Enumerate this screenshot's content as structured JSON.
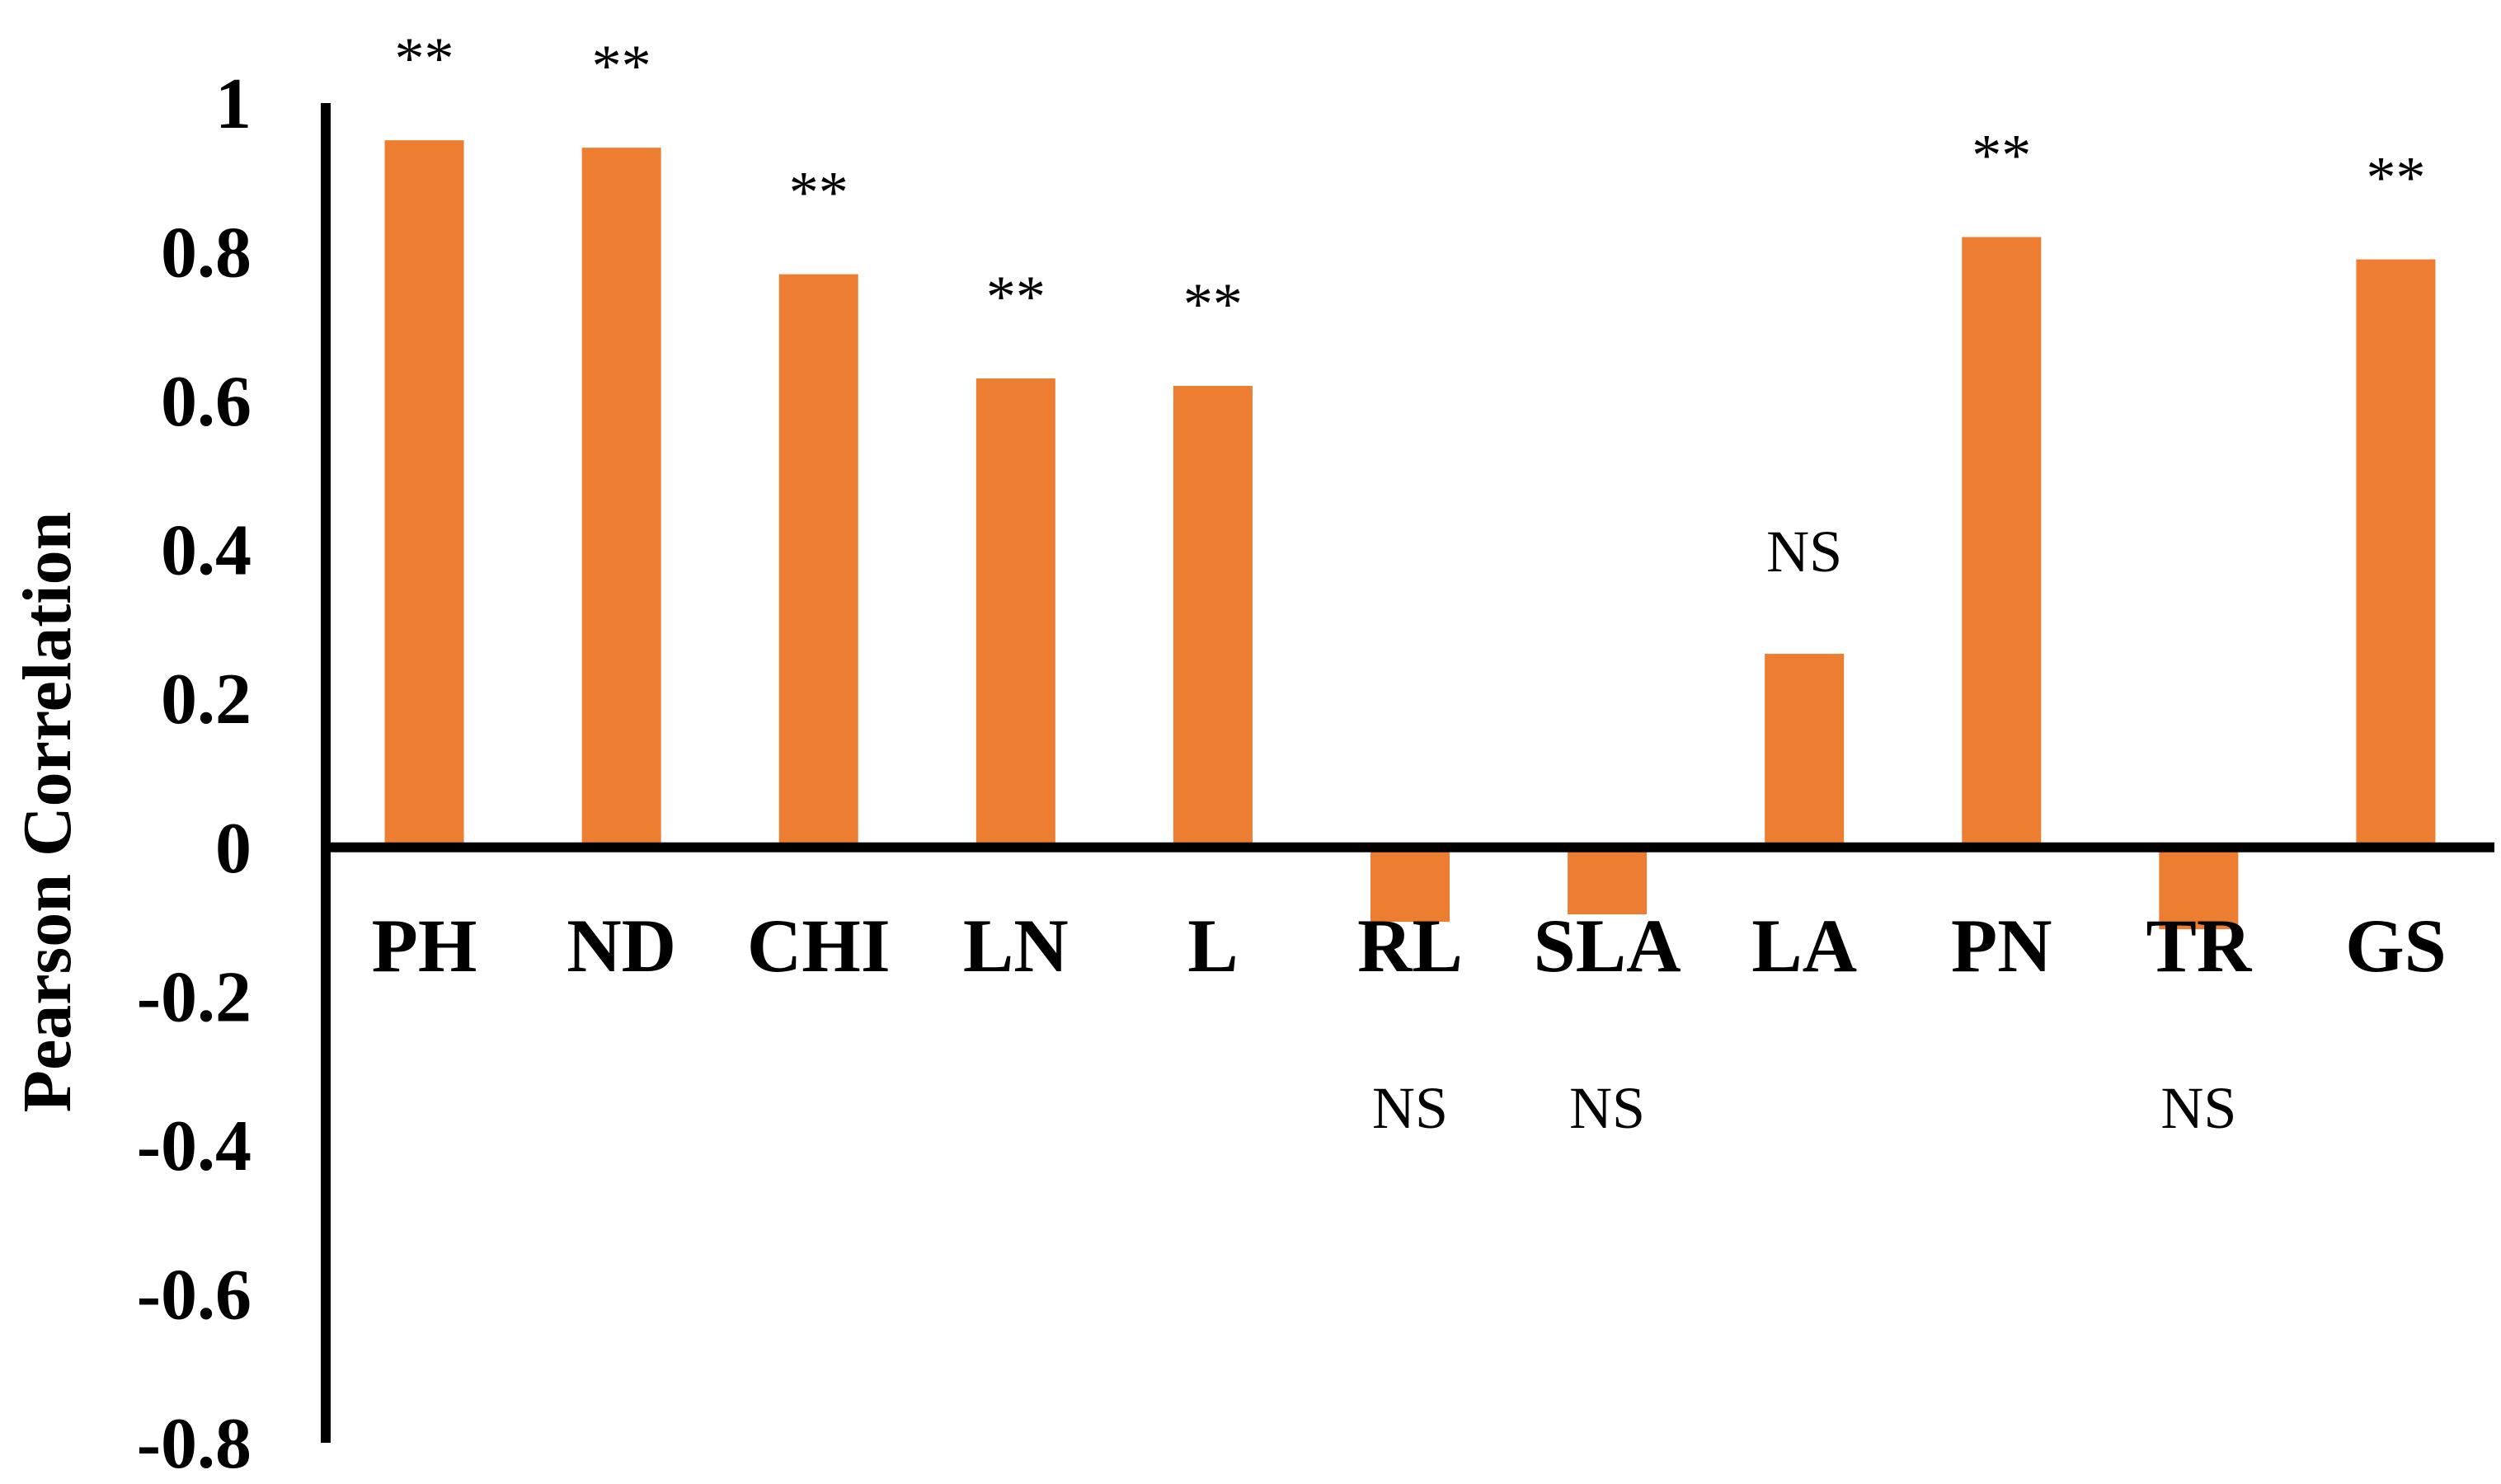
{
  "chart_data": {
    "type": "bar",
    "title": "",
    "xlabel": "",
    "ylabel": "Pearson Correlation",
    "ylim": [
      -0.8,
      1
    ],
    "yticks": [
      "1",
      "0.8",
      "0.6",
      "0.4",
      "0.2",
      "0",
      "-0.2",
      "-0.4",
      "-0.6",
      "-0.8"
    ],
    "ytick_values": [
      1,
      0.8,
      0.6,
      0.4,
      0.2,
      0,
      -0.2,
      -0.4,
      -0.6,
      -0.8
    ],
    "categories": [
      "PH",
      "ND",
      "CHI",
      "LN",
      "L",
      "RL",
      "SLA",
      "LA",
      "PN",
      "TR",
      "GS"
    ],
    "values": [
      0.95,
      0.94,
      0.77,
      0.63,
      0.62,
      -0.1,
      -0.09,
      0.26,
      0.82,
      -0.11,
      0.79
    ],
    "significance": [
      "**",
      "**",
      "**",
      "**",
      "**",
      "NS",
      "NS",
      "NS",
      "**",
      "NS",
      "**"
    ],
    "bar_color": "#ED7D31",
    "axis_color": "#000000",
    "grid": false,
    "legend": "none"
  }
}
